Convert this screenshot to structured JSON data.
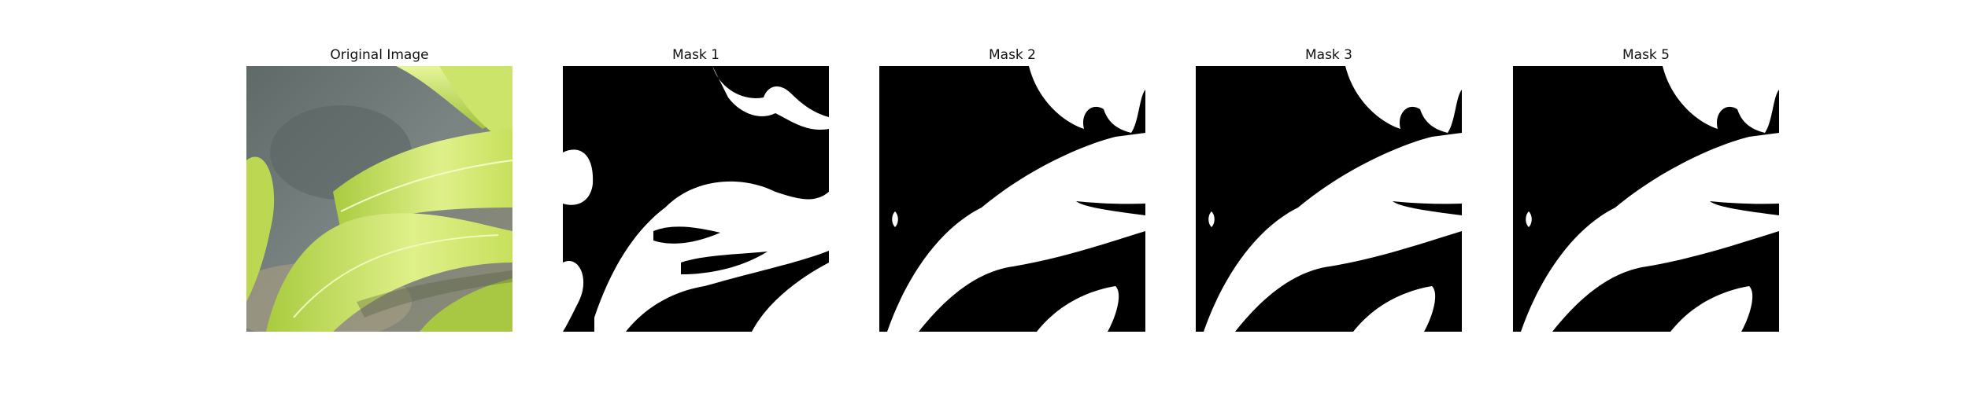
{
  "panels": [
    {
      "title": "Original Image",
      "kind": "photo"
    },
    {
      "title": "Mask 1",
      "kind": "mask"
    },
    {
      "title": "Mask 2",
      "kind": "mask"
    },
    {
      "title": "Mask 3",
      "kind": "mask"
    },
    {
      "title": "Mask 5",
      "kind": "mask"
    }
  ],
  "colors": {
    "mask_background": "#000000",
    "mask_foreground": "#ffffff",
    "leaf_light": "#dff08a",
    "leaf_mid": "#b7d64e",
    "leaf_dark": "#7fa62c",
    "background_grey": "#6d7774"
  }
}
